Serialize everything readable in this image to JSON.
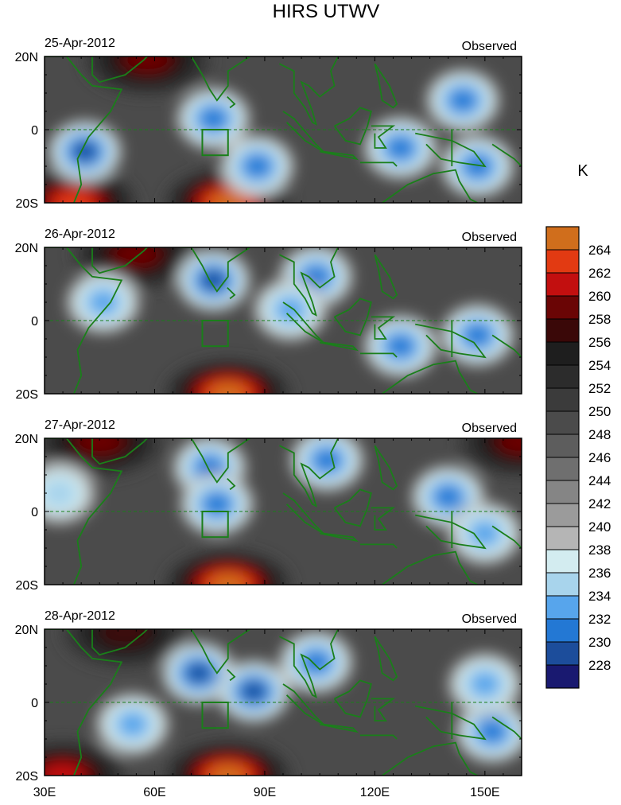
{
  "title": "HIRS UTWV",
  "colorbar": {
    "unit": "K",
    "levels": [
      228,
      230,
      232,
      234,
      236,
      238,
      240,
      242,
      244,
      246,
      248,
      250,
      252,
      254,
      256,
      258,
      260,
      262,
      264
    ],
    "colors": [
      "#191970",
      "#1c4d9b",
      "#2378d4",
      "#57a5ec",
      "#a8d4ec",
      "#d3ecf0",
      "#b5b5b5",
      "#9b9b9b",
      "#858585",
      "#6f6f6f",
      "#5d5d5d",
      "#4b4b4b",
      "#3b3b3b",
      "#2c2c2c",
      "#1e1e1e",
      "#3a0808",
      "#6a0505",
      "#c20f0f",
      "#e23a12",
      "#d06e1c"
    ]
  },
  "chart_data": [
    {
      "type": "heatmap",
      "date": "25-Apr-2012",
      "label": "Observed",
      "x_ticks": [
        "30E",
        "60E",
        "90E",
        "120E",
        "150E"
      ],
      "y_ticks": [
        "20N",
        "0",
        "20S"
      ],
      "xlim": [
        30,
        160
      ],
      "ylim": [
        -20,
        20
      ],
      "moist_regions": [
        {
          "lon": 41,
          "lat": -6,
          "min_value": 230
        },
        {
          "lon": 76,
          "lat": 3,
          "min_value": 231
        },
        {
          "lon": 88,
          "lat": -10,
          "min_value": 231
        },
        {
          "lon": 127,
          "lat": -5,
          "min_value": 232
        },
        {
          "lon": 144,
          "lat": 8,
          "min_value": 232
        },
        {
          "lon": 148,
          "lat": -10,
          "min_value": 232
        }
      ],
      "dry_regions": [
        {
          "lon": 58,
          "lat": 19,
          "max_value": 258
        },
        {
          "lon": 80,
          "lat": -20,
          "max_value": 264
        },
        {
          "lon": 38,
          "lat": -20,
          "max_value": 262
        }
      ]
    },
    {
      "type": "heatmap",
      "date": "26-Apr-2012",
      "label": "Observed",
      "x_ticks": [
        "30E",
        "60E",
        "90E",
        "120E",
        "150E"
      ],
      "y_ticks": [
        "20N",
        "0",
        "20S"
      ],
      "xlim": [
        30,
        160
      ],
      "ylim": [
        -20,
        20
      ],
      "moist_regions": [
        {
          "lon": 76,
          "lat": 11,
          "min_value": 229
        },
        {
          "lon": 104,
          "lat": 12,
          "min_value": 231
        },
        {
          "lon": 97,
          "lat": 3,
          "min_value": 233
        },
        {
          "lon": 127,
          "lat": -7,
          "min_value": 231
        },
        {
          "lon": 148,
          "lat": -4,
          "min_value": 231
        },
        {
          "lon": 46,
          "lat": 5,
          "min_value": 233
        }
      ],
      "dry_regions": [
        {
          "lon": 80,
          "lat": -20,
          "max_value": 265
        },
        {
          "lon": 55,
          "lat": 18,
          "max_value": 258
        }
      ]
    },
    {
      "type": "heatmap",
      "date": "27-Apr-2012",
      "label": "Observed",
      "x_ticks": [
        "30E",
        "60E",
        "90E",
        "120E",
        "150E"
      ],
      "y_ticks": [
        "20N",
        "0",
        "20S"
      ],
      "xlim": [
        30,
        160
      ],
      "ylim": [
        -20,
        20
      ],
      "moist_regions": [
        {
          "lon": 75,
          "lat": 12,
          "min_value": 231
        },
        {
          "lon": 77,
          "lat": 2,
          "min_value": 231
        },
        {
          "lon": 107,
          "lat": 14,
          "min_value": 231
        },
        {
          "lon": 140,
          "lat": 4,
          "min_value": 232
        },
        {
          "lon": 150,
          "lat": -6,
          "min_value": 234
        },
        {
          "lon": 34,
          "lat": 5,
          "min_value": 235
        }
      ],
      "dry_regions": [
        {
          "lon": 80,
          "lat": -20,
          "max_value": 264
        },
        {
          "lon": 45,
          "lat": 19,
          "max_value": 258
        },
        {
          "lon": 160,
          "lat": 19,
          "max_value": 258
        }
      ]
    },
    {
      "type": "heatmap",
      "date": "28-Apr-2012",
      "label": "Observed",
      "x_ticks": [
        "30E",
        "60E",
        "90E",
        "120E",
        "150E"
      ],
      "y_ticks": [
        "20N",
        "0",
        "20S"
      ],
      "xlim": [
        30,
        160
      ],
      "ylim": [
        -20,
        20
      ],
      "moist_regions": [
        {
          "lon": 72,
          "lat": 8,
          "min_value": 229
        },
        {
          "lon": 87,
          "lat": 3,
          "min_value": 229
        },
        {
          "lon": 104,
          "lat": 11,
          "min_value": 231
        },
        {
          "lon": 152,
          "lat": -8,
          "min_value": 232
        },
        {
          "lon": 150,
          "lat": 5,
          "min_value": 234
        },
        {
          "lon": 54,
          "lat": -6,
          "min_value": 233
        }
      ],
      "dry_regions": [
        {
          "lon": 80,
          "lat": -20,
          "max_value": 264
        },
        {
          "lon": 35,
          "lat": -20,
          "max_value": 260
        },
        {
          "lon": 52,
          "lat": 19,
          "max_value": 256
        }
      ]
    }
  ],
  "box_region": {
    "lon_min": 73,
    "lon_max": 80,
    "lat_min": -7,
    "lat_max": 0
  }
}
